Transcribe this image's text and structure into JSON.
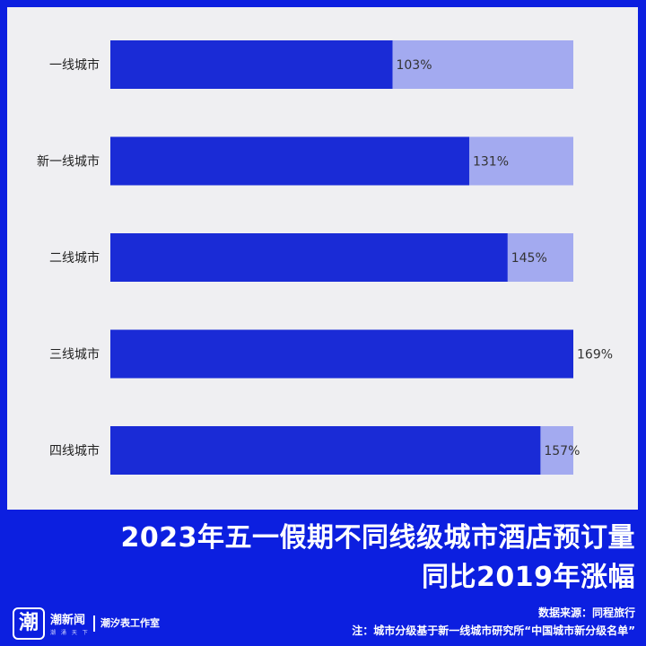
{
  "chart_data": {
    "type": "bar",
    "orientation": "horizontal",
    "categories": [
      "一线城市",
      "新一线城市",
      "二线城市",
      "三线城市",
      "四线城市"
    ],
    "values": [
      103,
      131,
      145,
      169,
      157
    ],
    "value_labels": [
      "103%",
      "131%",
      "145%",
      "169%",
      "157%"
    ],
    "xlim": [
      0,
      169
    ],
    "grid": false,
    "colors": {
      "bar": "#1a2bd6",
      "background_bar": "#a3aaf0",
      "panel": "#efeff2"
    }
  },
  "title": {
    "line1": "2023年五一假期不同线级城市酒店预订量",
    "line2": "同比2019年涨幅"
  },
  "footer": {
    "logo_char": "潮",
    "brand_name": "潮新闻",
    "brand_sub": "潮 涌 天 下",
    "studio": "潮汐表工作室",
    "source": "数据来源：同程旅行",
    "note": "注：城市分级基于新一线城市研究所“中国城市新分级名单”"
  },
  "colors": {
    "accent": "#0c1fe0",
    "text_on_accent": "#ffffff"
  }
}
